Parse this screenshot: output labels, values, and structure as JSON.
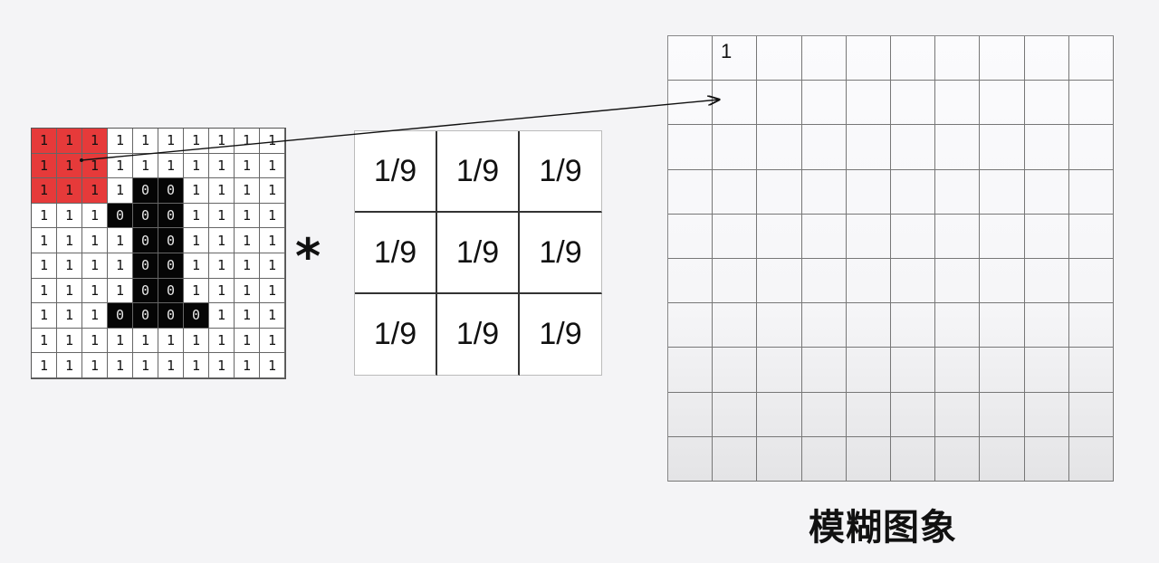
{
  "input_matrix": [
    [
      "1",
      "1",
      "1",
      "1",
      "1",
      "1",
      "1",
      "1",
      "1",
      "1"
    ],
    [
      "1",
      "1",
      "1",
      "1",
      "1",
      "1",
      "1",
      "1",
      "1",
      "1"
    ],
    [
      "1",
      "1",
      "1",
      "1",
      "0",
      "0",
      "1",
      "1",
      "1",
      "1"
    ],
    [
      "1",
      "1",
      "1",
      "0",
      "0",
      "0",
      "1",
      "1",
      "1",
      "1"
    ],
    [
      "1",
      "1",
      "1",
      "1",
      "0",
      "0",
      "1",
      "1",
      "1",
      "1"
    ],
    [
      "1",
      "1",
      "1",
      "1",
      "0",
      "0",
      "1",
      "1",
      "1",
      "1"
    ],
    [
      "1",
      "1",
      "1",
      "1",
      "0",
      "0",
      "1",
      "1",
      "1",
      "1"
    ],
    [
      "1",
      "1",
      "1",
      "0",
      "0",
      "0",
      "0",
      "1",
      "1",
      "1"
    ],
    [
      "1",
      "1",
      "1",
      "1",
      "1",
      "1",
      "1",
      "1",
      "1",
      "1"
    ],
    [
      "1",
      "1",
      "1",
      "1",
      "1",
      "1",
      "1",
      "1",
      "1",
      "1"
    ]
  ],
  "highlight_window": {
    "rows": 3,
    "cols": 3
  },
  "operator": "*",
  "kernel": [
    [
      "1/9",
      "1/9",
      "1/9"
    ],
    [
      "1/9",
      "1/9",
      "1/9"
    ],
    [
      "1/9",
      "1/9",
      "1/9"
    ]
  ],
  "output": {
    "rows": 10,
    "cols": 10,
    "first_value": "1"
  },
  "caption": "模糊图象",
  "colors": {
    "highlight": "#e63a3a",
    "dark": "#050505",
    "background": "#f4f4f6"
  }
}
